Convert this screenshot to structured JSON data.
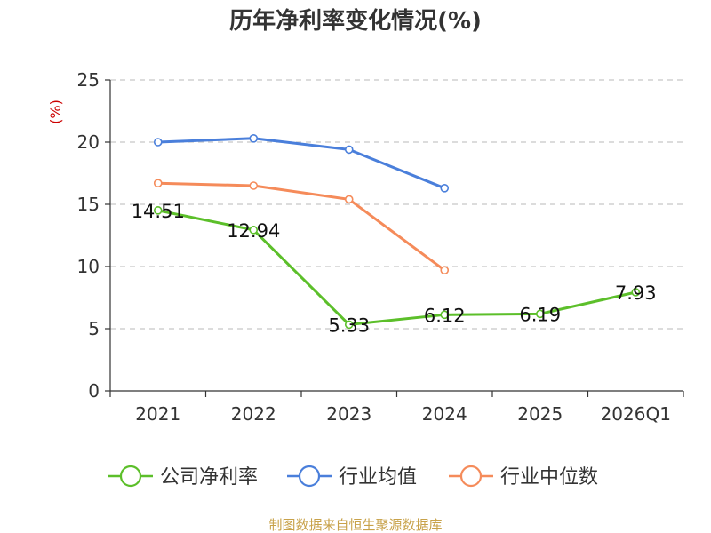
{
  "chart_data": {
    "type": "line",
    "title": "历年净利率变化情况(%)",
    "ylabel": "(%)",
    "xlabel": "",
    "categories": [
      "2021",
      "2022",
      "2023",
      "2024",
      "2025",
      "2026Q1"
    ],
    "ylim": [
      0,
      25
    ],
    "yticks": [
      0,
      5,
      10,
      15,
      20,
      25
    ],
    "grid": true,
    "legend_position": "bottom",
    "series": [
      {
        "name": "公司净利率",
        "color": "#5cbf2a",
        "labeled": true,
        "values": [
          14.51,
          12.94,
          5.33,
          6.12,
          6.19,
          7.93
        ],
        "labels": [
          "14.51",
          "12.94",
          "5.33",
          "6.12",
          "6.19",
          "7.93"
        ]
      },
      {
        "name": "行业均值",
        "color": "#4a7fdb",
        "labeled": false,
        "values": [
          20.0,
          20.3,
          19.4,
          16.3,
          null,
          null
        ]
      },
      {
        "name": "行业中位数",
        "color": "#f58b5a",
        "labeled": false,
        "values": [
          16.7,
          16.5,
          15.4,
          9.7,
          null,
          null
        ]
      }
    ]
  },
  "source": "制图数据来自恒生聚源数据库"
}
